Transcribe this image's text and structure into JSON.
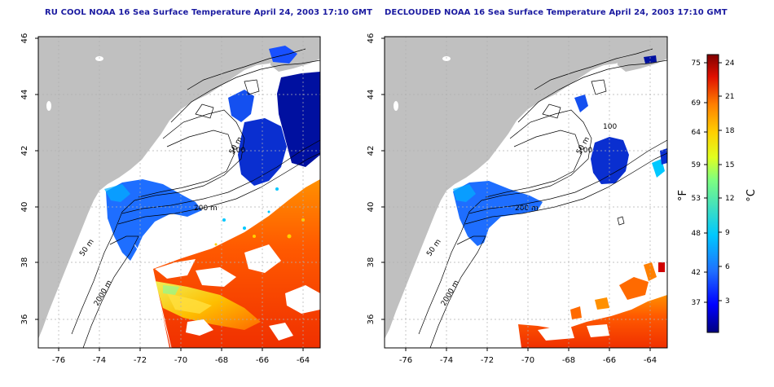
{
  "titles": {
    "left": "RU COOL NOAA 16 Sea Surface Temperature April 24, 2003 17:10 GMT",
    "right": "DECLOUDED NOAA 16 Sea Surface Temperature April 24, 2003 17:10 GMT"
  },
  "axes": {
    "lon_ticks": [
      "-76",
      "-74",
      "-72",
      "-70",
      "-68",
      "-66",
      "-64"
    ],
    "lat_ticks": [
      "36",
      "38",
      "40",
      "42",
      "44",
      "46"
    ]
  },
  "contour_labels": {
    "left": [
      "50 m",
      "100",
      "200 m",
      "50 m",
      "2000 m"
    ],
    "right": [
      "100",
      "50 m",
      "100",
      "200 m",
      "50 m",
      "2000 m"
    ]
  },
  "colorbar": {
    "fahrenheit_ticks": [
      "75",
      "69",
      "64",
      "59",
      "53",
      "48",
      "42",
      "37"
    ],
    "celsius_ticks": [
      "24",
      "21",
      "18",
      "15",
      "12",
      "9",
      "6",
      "3"
    ],
    "fahrenheit_label": "°F",
    "celsius_label": "°C",
    "colors": [
      "#00007f",
      "#0000ff",
      "#1f6fff",
      "#00c8ff",
      "#40e0c0",
      "#7fff7f",
      "#e0ff20",
      "#ffd000",
      "#ff8000",
      "#ff3000",
      "#c00000",
      "#800000"
    ]
  },
  "colors": {
    "land": "#c0c0c0",
    "title": "#1a1aa0",
    "grid": "#b0b0b0"
  }
}
